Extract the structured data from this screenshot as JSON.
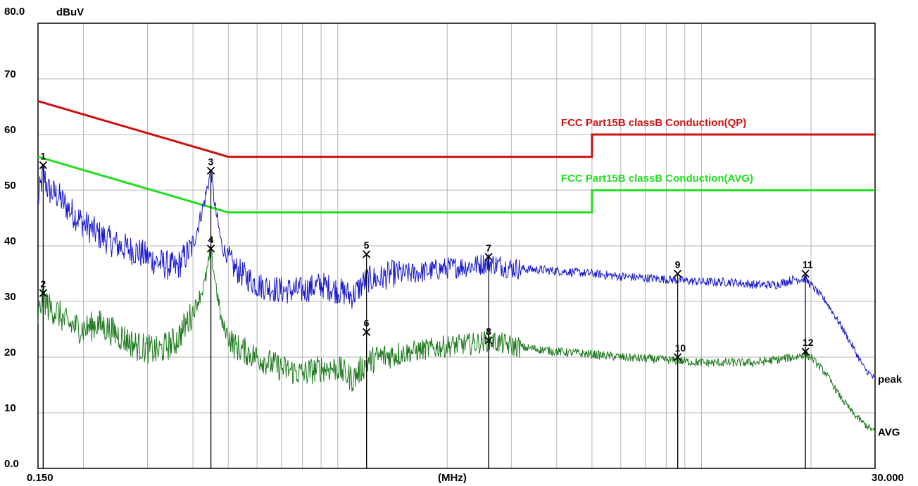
{
  "chart_data": {
    "type": "line",
    "y_unit": "dBuV",
    "x_unit": "(MHz)",
    "x_scale": "log",
    "xlim": [
      0.15,
      30.0
    ],
    "ylim": [
      0,
      80
    ],
    "x_start_label": "0.150",
    "x_end_label": "30.000",
    "y_tick_labels": [
      "80.0",
      "70",
      "60",
      "50",
      "40",
      "30",
      "20",
      "10",
      "0.0"
    ],
    "grid": true,
    "limit_lines": [
      {
        "name": "FCC  Part15B classB Conduction(QP)",
        "color": "#cc1111",
        "points": [
          [
            0.15,
            66
          ],
          [
            0.5,
            56
          ],
          [
            5,
            56
          ],
          [
            5,
            60
          ],
          [
            30,
            60
          ]
        ]
      },
      {
        "name": "FCC  Part15B classB Conduction(AVG)",
        "color": "#22dd22",
        "points": [
          [
            0.15,
            56
          ],
          [
            0.5,
            46
          ],
          [
            5,
            46
          ],
          [
            5,
            50
          ],
          [
            30,
            50
          ]
        ]
      }
    ],
    "series": [
      {
        "name": "peak",
        "color": "#1a1ad0",
        "points": [
          [
            0.15,
            48
          ],
          [
            0.155,
            53
          ],
          [
            0.16,
            50
          ],
          [
            0.17,
            49
          ],
          [
            0.18,
            47
          ],
          [
            0.2,
            44
          ],
          [
            0.22,
            42
          ],
          [
            0.25,
            40
          ],
          [
            0.28,
            39
          ],
          [
            0.32,
            37
          ],
          [
            0.36,
            36
          ],
          [
            0.4,
            40
          ],
          [
            0.43,
            48
          ],
          [
            0.448,
            53.5
          ],
          [
            0.46,
            47
          ],
          [
            0.48,
            40
          ],
          [
            0.52,
            36
          ],
          [
            0.6,
            33
          ],
          [
            0.7,
            32
          ],
          [
            0.8,
            32
          ],
          [
            0.9,
            33
          ],
          [
            1.0,
            32
          ],
          [
            1.1,
            31
          ],
          [
            1.2,
            34
          ],
          [
            1.3,
            34
          ],
          [
            1.4,
            35
          ],
          [
            1.6,
            35
          ],
          [
            2.0,
            36
          ],
          [
            2.4,
            36.5
          ],
          [
            2.6,
            37
          ],
          [
            3.0,
            36
          ],
          [
            4.0,
            35.5
          ],
          [
            5.0,
            35
          ],
          [
            6.0,
            34.5
          ],
          [
            8.0,
            34
          ],
          [
            10.0,
            33.5
          ],
          [
            12.0,
            33.5
          ],
          [
            14.0,
            33
          ],
          [
            16.0,
            33
          ],
          [
            18.0,
            34
          ],
          [
            19.3,
            34
          ],
          [
            20.0,
            33
          ],
          [
            22.0,
            30
          ],
          [
            24.0,
            26
          ],
          [
            26.0,
            22
          ],
          [
            28.0,
            18
          ],
          [
            30.0,
            16
          ]
        ]
      },
      {
        "name": "AVG",
        "color": "#1e7a1e",
        "points": [
          [
            0.15,
            27
          ],
          [
            0.155,
            31
          ],
          [
            0.16,
            29
          ],
          [
            0.17,
            28
          ],
          [
            0.18,
            26
          ],
          [
            0.2,
            25
          ],
          [
            0.22,
            26
          ],
          [
            0.25,
            24
          ],
          [
            0.28,
            22
          ],
          [
            0.32,
            21
          ],
          [
            0.36,
            23
          ],
          [
            0.4,
            28
          ],
          [
            0.43,
            33
          ],
          [
            0.448,
            39
          ],
          [
            0.46,
            34
          ],
          [
            0.48,
            26
          ],
          [
            0.52,
            22
          ],
          [
            0.6,
            20
          ],
          [
            0.7,
            18
          ],
          [
            0.8,
            17
          ],
          [
            0.9,
            18
          ],
          [
            1.0,
            18
          ],
          [
            1.1,
            16
          ],
          [
            1.2,
            19
          ],
          [
            1.3,
            20
          ],
          [
            1.6,
            21
          ],
          [
            2.0,
            22
          ],
          [
            2.4,
            22.5
          ],
          [
            2.6,
            23
          ],
          [
            3.0,
            22
          ],
          [
            4.0,
            21
          ],
          [
            5.0,
            20.5
          ],
          [
            6.0,
            20
          ],
          [
            8.0,
            19.5
          ],
          [
            10.0,
            19
          ],
          [
            12.0,
            19
          ],
          [
            14.0,
            19
          ],
          [
            16.0,
            19.5
          ],
          [
            18.0,
            20
          ],
          [
            19.3,
            20.5
          ],
          [
            20.0,
            20
          ],
          [
            22.0,
            17
          ],
          [
            24.0,
            13
          ],
          [
            26.0,
            10
          ],
          [
            28.0,
            8
          ],
          [
            30.0,
            6.5
          ]
        ]
      }
    ],
    "series_labels": [
      "peak",
      "AVG"
    ],
    "markers": [
      {
        "label": "1",
        "x": 0.155,
        "y": 54.5
      },
      {
        "label": "2",
        "x": 0.155,
        "y": 31.5
      },
      {
        "label": "3",
        "x": 0.448,
        "y": 53.5
      },
      {
        "label": "4",
        "x": 0.448,
        "y": 39.5
      },
      {
        "label": "5",
        "x": 1.2,
        "y": 38.5
      },
      {
        "label": "6",
        "x": 1.2,
        "y": 24.5
      },
      {
        "label": "7",
        "x": 2.6,
        "y": 38.0
      },
      {
        "label": "8",
        "x": 2.6,
        "y": 23.0
      },
      {
        "label": "9",
        "x": 8.6,
        "y": 35.0
      },
      {
        "label": "10",
        "x": 8.6,
        "y": 20.0
      },
      {
        "label": "11",
        "x": 19.3,
        "y": 35.0
      },
      {
        "label": "12",
        "x": 19.3,
        "y": 21.0
      }
    ]
  }
}
